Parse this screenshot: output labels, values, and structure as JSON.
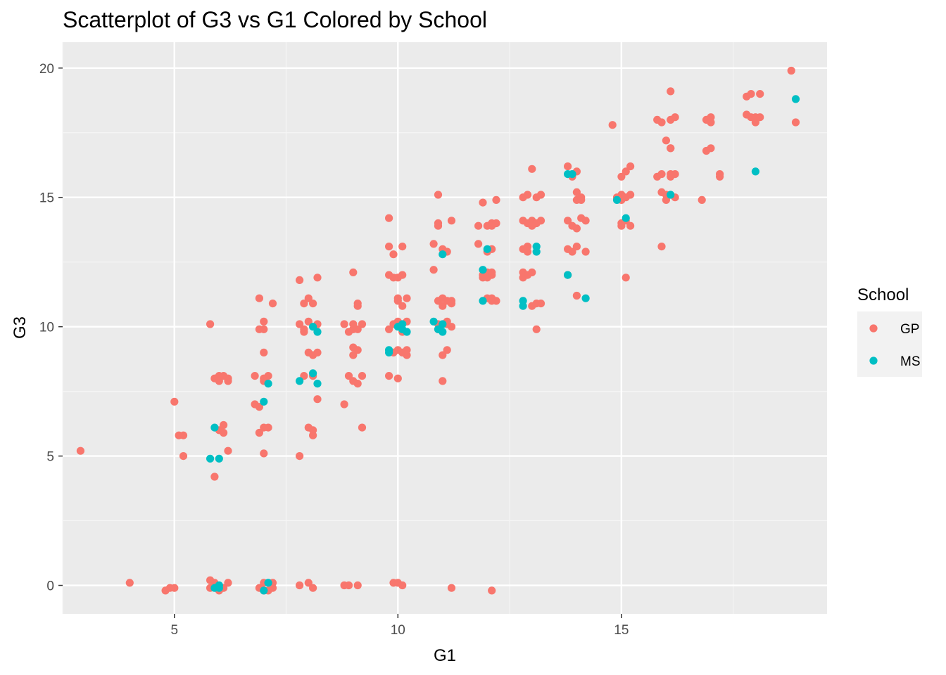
{
  "chart_data": {
    "type": "scatter",
    "title": "Scatterplot of G3 vs G1 Colored by School",
    "xlabel": "G1",
    "ylabel": "G3",
    "xlim": [
      2.5,
      19.6
    ],
    "ylim": [
      -1.1,
      21.0
    ],
    "x_ticks": [
      5,
      10,
      15
    ],
    "y_ticks": [
      0,
      5,
      10,
      15,
      20
    ],
    "x_tick_labels": [
      "5",
      "10",
      "15"
    ],
    "y_tick_labels": [
      "0",
      "5",
      "10",
      "15",
      "20"
    ],
    "grid": true,
    "legend": {
      "title": "School",
      "placement": "right"
    },
    "series": [
      {
        "name": "GP",
        "color": "#F8766D",
        "points": [
          [
            2.9,
            5.2
          ],
          [
            4.0,
            0.1
          ],
          [
            4.8,
            -0.2
          ],
          [
            4.9,
            -0.1
          ],
          [
            5.0,
            -0.1
          ],
          [
            5.0,
            7.1
          ],
          [
            5.1,
            5.8
          ],
          [
            5.2,
            5.8
          ],
          [
            5.2,
            5.0
          ],
          [
            5.8,
            10.1
          ],
          [
            5.8,
            0.2
          ],
          [
            5.8,
            -0.1
          ],
          [
            5.9,
            4.2
          ],
          [
            5.9,
            8.0
          ],
          [
            5.9,
            0.1
          ],
          [
            6.0,
            8.1
          ],
          [
            6.0,
            7.9
          ],
          [
            6.0,
            -0.2
          ],
          [
            6.0,
            6.0
          ],
          [
            6.1,
            6.2
          ],
          [
            6.1,
            5.9
          ],
          [
            6.1,
            -0.1
          ],
          [
            6.1,
            8.1
          ],
          [
            6.2,
            8.0
          ],
          [
            6.2,
            0.1
          ],
          [
            6.2,
            5.2
          ],
          [
            6.2,
            7.9
          ],
          [
            6.8,
            8.1
          ],
          [
            6.8,
            7.0
          ],
          [
            6.9,
            9.9
          ],
          [
            6.9,
            5.9
          ],
          [
            6.9,
            -0.1
          ],
          [
            6.9,
            11.1
          ],
          [
            6.9,
            6.9
          ],
          [
            7.0,
            6.1
          ],
          [
            7.0,
            10.2
          ],
          [
            7.0,
            9.0
          ],
          [
            7.0,
            8.0
          ],
          [
            7.0,
            5.1
          ],
          [
            7.0,
            0.1
          ],
          [
            7.0,
            7.9
          ],
          [
            7.0,
            -0.2
          ],
          [
            7.0,
            9.9
          ],
          [
            7.1,
            6.1
          ],
          [
            7.1,
            8.1
          ],
          [
            7.1,
            -0.2
          ],
          [
            7.2,
            0.1
          ],
          [
            7.2,
            -0.1
          ],
          [
            7.2,
            10.9
          ],
          [
            7.8,
            0.0
          ],
          [
            7.8,
            11.8
          ],
          [
            7.8,
            10.1
          ],
          [
            7.8,
            5.0
          ],
          [
            7.9,
            10.9
          ],
          [
            7.9,
            8.1
          ],
          [
            7.9,
            9.9
          ],
          [
            7.9,
            9.8
          ],
          [
            8.0,
            11.1
          ],
          [
            8.0,
            6.1
          ],
          [
            8.0,
            10.2
          ],
          [
            8.0,
            0.1
          ],
          [
            8.0,
            9.0
          ],
          [
            8.1,
            10.9
          ],
          [
            8.1,
            8.1
          ],
          [
            8.1,
            5.8
          ],
          [
            8.1,
            6.0
          ],
          [
            8.1,
            -0.1
          ],
          [
            8.1,
            8.9
          ],
          [
            8.2,
            11.9
          ],
          [
            8.2,
            10.1
          ],
          [
            8.2,
            7.2
          ],
          [
            8.2,
            9.0
          ],
          [
            8.8,
            7.0
          ],
          [
            8.8,
            10.1
          ],
          [
            8.8,
            0.0
          ],
          [
            8.9,
            9.8
          ],
          [
            8.9,
            8.1
          ],
          [
            8.9,
            0.0
          ],
          [
            9.0,
            9.2
          ],
          [
            9.0,
            12.1
          ],
          [
            9.0,
            10.1
          ],
          [
            9.0,
            9.9
          ],
          [
            9.0,
            8.9
          ],
          [
            9.0,
            7.9
          ],
          [
            9.1,
            10.9
          ],
          [
            9.1,
            9.9
          ],
          [
            9.1,
            7.8
          ],
          [
            9.1,
            9.1
          ],
          [
            9.1,
            10.8
          ],
          [
            9.1,
            0.0
          ],
          [
            9.2,
            6.1
          ],
          [
            9.2,
            10.1
          ],
          [
            9.2,
            8.1
          ],
          [
            9.8,
            13.1
          ],
          [
            9.8,
            14.2
          ],
          [
            9.8,
            12.0
          ],
          [
            9.8,
            8.1
          ],
          [
            9.8,
            9.9
          ],
          [
            9.9,
            11.9
          ],
          [
            9.9,
            10.1
          ],
          [
            9.9,
            9.0
          ],
          [
            9.9,
            0.1
          ],
          [
            9.9,
            12.8
          ],
          [
            10.0,
            11.0
          ],
          [
            10.0,
            11.1
          ],
          [
            10.0,
            9.1
          ],
          [
            10.0,
            10.2
          ],
          [
            10.0,
            8.0
          ],
          [
            10.0,
            0.1
          ],
          [
            10.0,
            11.9
          ],
          [
            10.1,
            10.8
          ],
          [
            10.1,
            9.0
          ],
          [
            10.1,
            12.0
          ],
          [
            10.1,
            9.8
          ],
          [
            10.1,
            0.0
          ],
          [
            10.1,
            13.1
          ],
          [
            10.2,
            11.1
          ],
          [
            10.2,
            10.2
          ],
          [
            10.2,
            8.9
          ],
          [
            10.2,
            9.1
          ],
          [
            10.8,
            13.2
          ],
          [
            10.8,
            12.2
          ],
          [
            10.9,
            11.0
          ],
          [
            10.9,
            15.1
          ],
          [
            10.9,
            13.9
          ],
          [
            10.9,
            10.1
          ],
          [
            10.9,
            14.0
          ],
          [
            10.9,
            9.9
          ],
          [
            11.0,
            11.1
          ],
          [
            11.0,
            8.9
          ],
          [
            11.0,
            10.8
          ],
          [
            11.0,
            13.0
          ],
          [
            11.0,
            7.9
          ],
          [
            11.1,
            11.0
          ],
          [
            11.1,
            10.1
          ],
          [
            11.1,
            10.2
          ],
          [
            11.1,
            9.1
          ],
          [
            11.1,
            12.9
          ],
          [
            11.2,
            14.1
          ],
          [
            11.2,
            10.0
          ],
          [
            11.2,
            11.0
          ],
          [
            11.2,
            -0.1
          ],
          [
            11.2,
            10.9
          ],
          [
            11.8,
            13.9
          ],
          [
            11.8,
            13.2
          ],
          [
            11.9,
            12.0
          ],
          [
            11.9,
            11.9
          ],
          [
            11.9,
            14.8
          ],
          [
            12.0,
            11.9
          ],
          [
            12.0,
            12.9
          ],
          [
            12.0,
            13.9
          ],
          [
            12.0,
            12.1
          ],
          [
            12.0,
            11.1
          ],
          [
            12.1,
            11.0
          ],
          [
            12.1,
            14.0
          ],
          [
            12.1,
            12.1
          ],
          [
            12.1,
            12.0
          ],
          [
            12.1,
            11.1
          ],
          [
            12.1,
            13.9
          ],
          [
            12.1,
            13.0
          ],
          [
            12.1,
            -0.2
          ],
          [
            12.2,
            14.9
          ],
          [
            12.2,
            11.0
          ],
          [
            12.2,
            14.0
          ],
          [
            12.8,
            12.1
          ],
          [
            12.8,
            13.0
          ],
          [
            12.8,
            15.0
          ],
          [
            12.8,
            14.1
          ],
          [
            12.8,
            11.9
          ],
          [
            12.9,
            14.0
          ],
          [
            12.9,
            15.1
          ],
          [
            12.9,
            13.1
          ],
          [
            12.9,
            12.0
          ],
          [
            12.9,
            12.9
          ],
          [
            13.0,
            16.1
          ],
          [
            13.0,
            14.1
          ],
          [
            13.0,
            12.1
          ],
          [
            13.0,
            13.9
          ],
          [
            13.0,
            10.8
          ],
          [
            13.1,
            9.9
          ],
          [
            13.1,
            15.0
          ],
          [
            13.1,
            14.0
          ],
          [
            13.1,
            10.9
          ],
          [
            13.2,
            15.1
          ],
          [
            13.2,
            14.1
          ],
          [
            13.2,
            10.9
          ],
          [
            13.8,
            16.2
          ],
          [
            13.8,
            14.1
          ],
          [
            13.8,
            13.0
          ],
          [
            13.8,
            12.0
          ],
          [
            13.9,
            13.9
          ],
          [
            13.9,
            15.8
          ],
          [
            13.9,
            12.9
          ],
          [
            14.0,
            14.9
          ],
          [
            14.0,
            15.2
          ],
          [
            14.0,
            13.1
          ],
          [
            14.0,
            13.8
          ],
          [
            14.0,
            11.2
          ],
          [
            14.0,
            16.0
          ],
          [
            14.1,
            14.9
          ],
          [
            14.1,
            14.2
          ],
          [
            14.1,
            15.0
          ],
          [
            14.2,
            14.1
          ],
          [
            14.2,
            12.9
          ],
          [
            14.8,
            17.8
          ],
          [
            14.9,
            15.0
          ],
          [
            15.0,
            13.9
          ],
          [
            15.0,
            14.0
          ],
          [
            15.0,
            15.8
          ],
          [
            15.0,
            15.1
          ],
          [
            15.0,
            14.9
          ],
          [
            15.1,
            11.9
          ],
          [
            15.1,
            14.1
          ],
          [
            15.1,
            15.0
          ],
          [
            15.1,
            16.0
          ],
          [
            15.2,
            15.1
          ],
          [
            15.2,
            16.2
          ],
          [
            15.2,
            13.9
          ],
          [
            15.8,
            15.8
          ],
          [
            15.8,
            18.0
          ],
          [
            15.9,
            17.9
          ],
          [
            15.9,
            15.9
          ],
          [
            15.9,
            15.2
          ],
          [
            15.9,
            13.1
          ],
          [
            16.0,
            15.1
          ],
          [
            16.0,
            14.9
          ],
          [
            16.0,
            17.2
          ],
          [
            16.1,
            18.0
          ],
          [
            16.1,
            15.8
          ],
          [
            16.1,
            16.9
          ],
          [
            16.1,
            16.9
          ],
          [
            16.1,
            15.9
          ],
          [
            16.1,
            19.1
          ],
          [
            16.2,
            18.1
          ],
          [
            16.2,
            15.9
          ],
          [
            16.2,
            15.0
          ],
          [
            16.8,
            14.9
          ],
          [
            16.9,
            18.0
          ],
          [
            16.9,
            16.8
          ],
          [
            17.0,
            16.9
          ],
          [
            17.0,
            18.1
          ],
          [
            17.0,
            17.9
          ],
          [
            17.2,
            15.9
          ],
          [
            17.2,
            15.8
          ],
          [
            17.8,
            18.9
          ],
          [
            17.8,
            18.2
          ],
          [
            17.9,
            19.0
          ],
          [
            17.9,
            18.1
          ],
          [
            18.0,
            17.9
          ],
          [
            18.0,
            18.1
          ],
          [
            18.1,
            18.1
          ],
          [
            18.1,
            19.0
          ],
          [
            18.8,
            19.9
          ],
          [
            18.9,
            17.9
          ]
        ]
      },
      {
        "name": "MS",
        "color": "#00BFC4",
        "points": [
          [
            5.8,
            4.9
          ],
          [
            5.9,
            6.1
          ],
          [
            5.9,
            -0.1
          ],
          [
            6.0,
            4.9
          ],
          [
            6.0,
            -0.1
          ],
          [
            6.0,
            0.0
          ],
          [
            7.0,
            7.1
          ],
          [
            7.0,
            -0.2
          ],
          [
            7.1,
            7.8
          ],
          [
            7.1,
            0.1
          ],
          [
            7.8,
            7.9
          ],
          [
            8.1,
            10.0
          ],
          [
            8.1,
            8.2
          ],
          [
            8.2,
            9.8
          ],
          [
            8.2,
            7.8
          ],
          [
            9.8,
            9.1
          ],
          [
            9.8,
            9.0
          ],
          [
            10.0,
            10.0
          ],
          [
            10.1,
            9.9
          ],
          [
            10.1,
            10.1
          ],
          [
            10.2,
            9.8
          ],
          [
            10.8,
            10.2
          ],
          [
            10.9,
            9.9
          ],
          [
            11.0,
            9.8
          ],
          [
            11.0,
            10.1
          ],
          [
            11.0,
            12.8
          ],
          [
            11.9,
            11.0
          ],
          [
            11.9,
            12.2
          ],
          [
            12.0,
            13.0
          ],
          [
            12.8,
            11.0
          ],
          [
            12.8,
            10.8
          ],
          [
            13.1,
            12.9
          ],
          [
            13.1,
            13.1
          ],
          [
            13.8,
            12.0
          ],
          [
            13.8,
            15.9
          ],
          [
            13.9,
            15.9
          ],
          [
            14.2,
            11.1
          ],
          [
            14.9,
            14.9
          ],
          [
            15.1,
            14.2
          ],
          [
            16.1,
            15.1
          ],
          [
            18.0,
            16.0
          ],
          [
            18.9,
            18.8
          ]
        ]
      }
    ]
  }
}
